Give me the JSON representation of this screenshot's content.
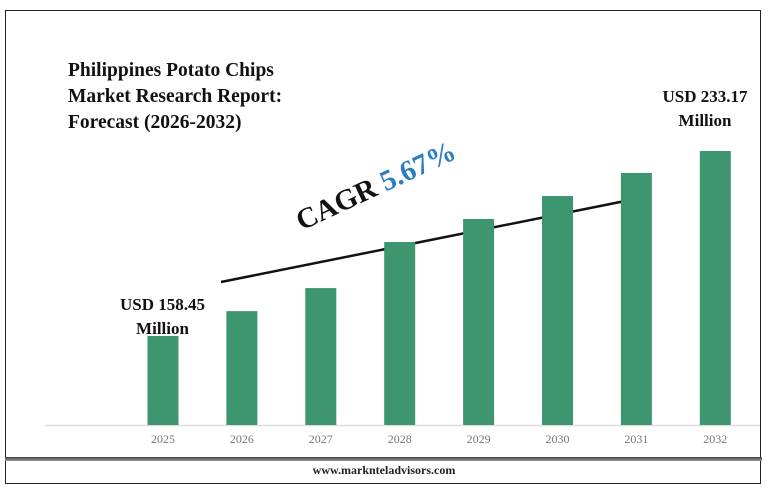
{
  "chart_data": {
    "type": "bar",
    "title": "Philippines Potato Chips\nMarket Research Report:\nForecast (2026-2032)",
    "categories": [
      "2025",
      "2026",
      "2027",
      "2028",
      "2029",
      "2030",
      "2031",
      "2032"
    ],
    "values": [
      158.45,
      168.5,
      177.8,
      196.4,
      205.7,
      215.0,
      224.3,
      233.17
    ],
    "ylim": [
      122.5,
      250
    ],
    "xlabel": "",
    "ylabel": "",
    "grid": false,
    "bar_color": "#3d9670",
    "annotations": {
      "start_label": "USD 158.45\nMillion",
      "end_label": "USD 233.17\nMillion",
      "cagr_label": "CAGR",
      "cagr_value": "5.67%",
      "cagr_color": "#2a7fc4"
    }
  },
  "footer": {
    "url": "www.marknteladvisors.com"
  }
}
